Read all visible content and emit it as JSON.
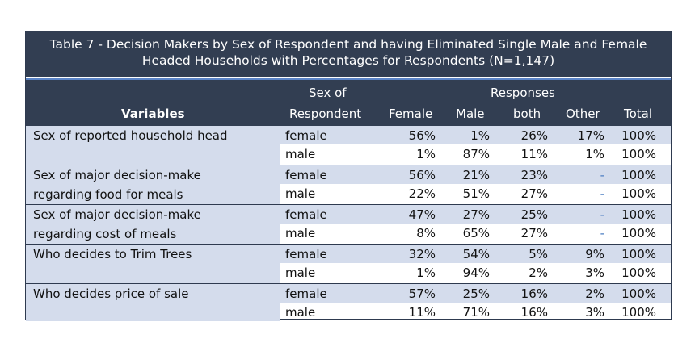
{
  "title": "Table 7 - Decision Makers by Sex of Respondent and having Eliminated Single Male and Female Headed Households with Percentages for Respondents (N=1,147)",
  "header": {
    "variables": "Variables",
    "sex_of_1": "Sex of",
    "sex_of_2": "Respondent",
    "responses": "Responses",
    "cols": [
      "Female",
      "Male",
      "both",
      "Other",
      "Total"
    ]
  },
  "groups": [
    {
      "var": [
        "Sex of reported household head",
        ""
      ],
      "rows": [
        {
          "sex": "female",
          "vals": [
            "56%",
            "1%",
            "26%",
            "17%",
            "100%"
          ]
        },
        {
          "sex": "male",
          "vals": [
            "1%",
            "87%",
            "11%",
            "1%",
            "100%"
          ]
        }
      ]
    },
    {
      "var": [
        "Sex of major decision-make",
        "regarding food for meals"
      ],
      "rows": [
        {
          "sex": "female",
          "vals": [
            "56%",
            "21%",
            "23%",
            "-",
            "100%"
          ]
        },
        {
          "sex": "male",
          "vals": [
            "22%",
            "51%",
            "27%",
            "-",
            "100%"
          ]
        }
      ]
    },
    {
      "var": [
        "Sex of major decision-make",
        "regarding cost of meals"
      ],
      "rows": [
        {
          "sex": "female",
          "vals": [
            "47%",
            "27%",
            "25%",
            "-",
            "100%"
          ]
        },
        {
          "sex": "male",
          "vals": [
            "8%",
            "65%",
            "27%",
            "-",
            "100%"
          ]
        }
      ]
    },
    {
      "var": [
        "Who decides to Trim Trees",
        ""
      ],
      "rows": [
        {
          "sex": "female",
          "vals": [
            "32%",
            "54%",
            "5%",
            "9%",
            "100%"
          ]
        },
        {
          "sex": "male",
          "vals": [
            "1%",
            "94%",
            "2%",
            "3%",
            "100%"
          ]
        }
      ]
    },
    {
      "var": [
        "Who decides price of sale",
        ""
      ],
      "rows": [
        {
          "sex": "female",
          "vals": [
            "57%",
            "25%",
            "16%",
            "2%",
            "100%"
          ]
        },
        {
          "sex": "male",
          "vals": [
            "11%",
            "71%",
            "16%",
            "3%",
            "100%"
          ]
        }
      ]
    }
  ]
}
